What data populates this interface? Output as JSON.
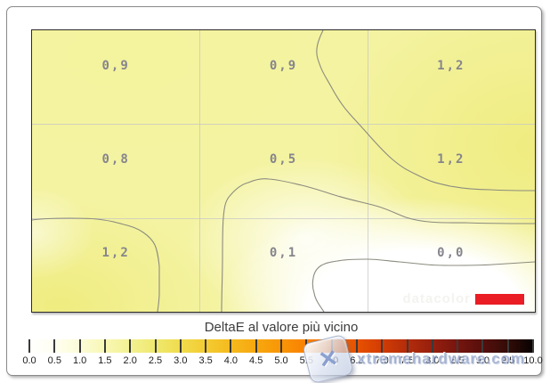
{
  "chart_data": {
    "type": "heatmap",
    "title": "DeltaE al valore più vicino",
    "grid": {
      "rows": 3,
      "cols": 3
    },
    "categories_note": "3x3 screen-uniformity patches, DeltaE to nearest value",
    "cell_labels": [
      [
        "0,9",
        "0,9",
        "1,2"
      ],
      [
        "0,8",
        "0,5",
        "1,2"
      ],
      [
        "1,2",
        "0,1",
        "0,0"
      ]
    ],
    "cell_values_numeric": [
      [
        0.9,
        0.9,
        1.2
      ],
      [
        0.8,
        0.5,
        1.2
      ],
      [
        1.2,
        0.1,
        0.0
      ]
    ],
    "colorbar": {
      "min": 0.0,
      "max": 10.0,
      "step": 0.5,
      "tick_labels": [
        "0.0",
        "0.5",
        "1.0",
        "1.5",
        "2.0",
        "2.5",
        "3.0",
        "3.5",
        "4.0",
        "4.5",
        "5.0",
        "5.5",
        "6.0",
        "6.5",
        "7.0",
        "7.5",
        "8.0",
        "8.5",
        "9.0",
        "9.5",
        "10.0"
      ],
      "colors": [
        "#ffffff",
        "#fffef0",
        "#fcfcd8",
        "#f8f7b4",
        "#f3f192",
        "#efe96e",
        "#f0dc4d",
        "#f3cc32",
        "#f5ba1e",
        "#f7a80e",
        "#f99506",
        "#f98102",
        "#f56b00",
        "#e85200",
        "#d23c04",
        "#b42c0b",
        "#951f0e",
        "#76150f",
        "#560f0c",
        "#330c07",
        "#070202"
      ]
    },
    "legend_position": "bottom",
    "grid_on": true
  },
  "legend": {
    "title": "DeltaE al valore più vicino"
  },
  "watermarks": {
    "vendor": "datacolor",
    "site": "xtremehardware.com",
    "site_badge_glyph": "✕"
  },
  "colors": {
    "vendor_red": "#e91d23",
    "plot_base_yellow": "#f4f3a1",
    "contour_line": "#8b8b7f",
    "cell_label_gray": "#85858d"
  }
}
